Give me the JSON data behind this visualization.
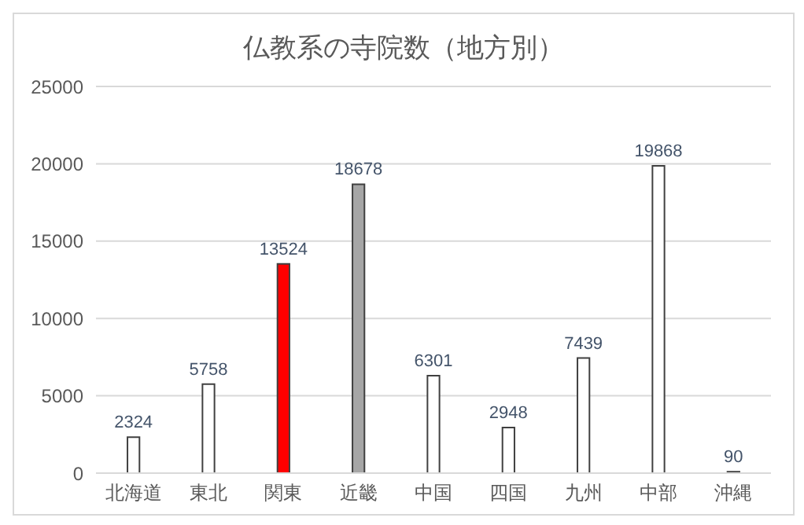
{
  "chart_data": {
    "type": "bar",
    "title": "仏教系の寺院数（地方別）",
    "categories": [
      "北海道",
      "東北",
      "関東",
      "近畿",
      "中国",
      "四国",
      "九州",
      "中部",
      "沖縄"
    ],
    "values": [
      2324,
      5758,
      13524,
      18678,
      6301,
      2948,
      7439,
      19868,
      90
    ],
    "colors": [
      "#ffffff",
      "#ffffff",
      "#ff0000",
      "#a6a6a6",
      "#ffffff",
      "#ffffff",
      "#ffffff",
      "#ffffff",
      "#ffffff"
    ],
    "ylim": [
      0,
      25000
    ],
    "yticks": [
      0,
      5000,
      10000,
      15000,
      20000,
      25000
    ],
    "grid": "y",
    "data_labels": true
  }
}
